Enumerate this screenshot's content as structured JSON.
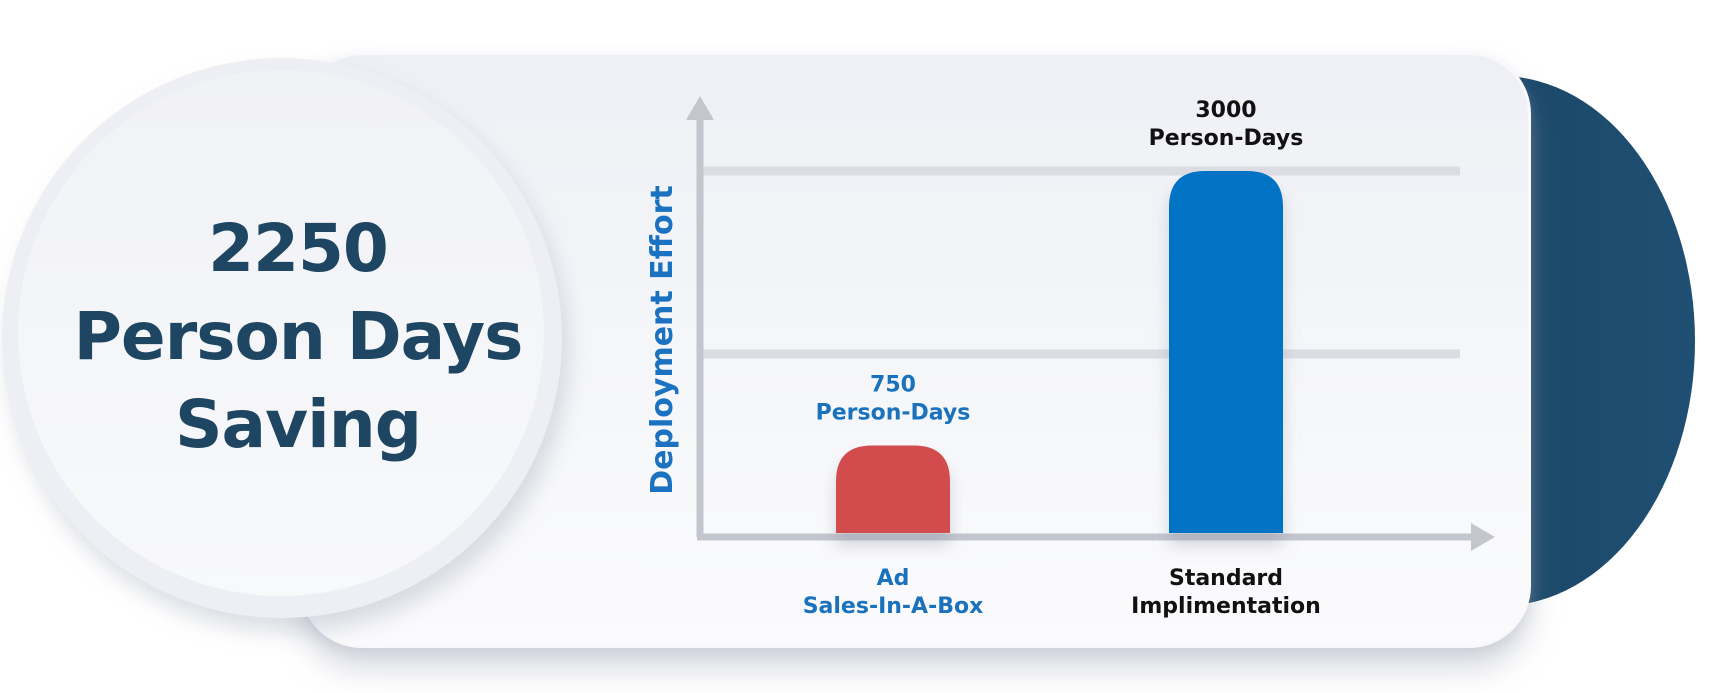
{
  "saving": {
    "line1": "2250",
    "line2": "Person Days",
    "line3": "Saving"
  },
  "colors": {
    "bar_ad_sales": "#d24c4e",
    "bar_standard": "#0373c4",
    "label_ad_sales": "#1a72bd",
    "label_standard": "#111111",
    "ylabel": "#1b72c0",
    "saving_text": "#1e4663",
    "dark_accent": "#1d4b6c"
  },
  "chart_data": {
    "type": "bar",
    "ylabel": "Deployment Effort",
    "xlabel": "",
    "categories": [
      "Ad Sales-In-A-Box",
      "Standard Implimentation"
    ],
    "values": [
      750,
      3000
    ],
    "data_labels": [
      [
        "750",
        "Person-Days"
      ],
      [
        "3000",
        "Person-Days"
      ]
    ],
    "ylim": [
      0,
      3500
    ],
    "gridlines_at": [
      1500,
      3000
    ],
    "grid": true,
    "legend": "none"
  }
}
